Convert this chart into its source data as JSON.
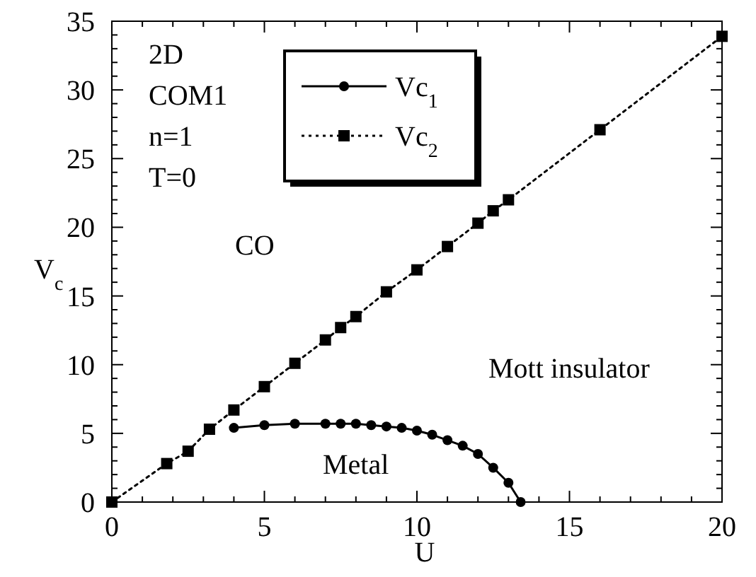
{
  "chart_data": {
    "type": "line",
    "xlabel": "U",
    "ylabel": "V$_{c}$",
    "xlim": [
      0,
      20
    ],
    "ylim": [
      0,
      35
    ],
    "xticks": [
      0,
      {
        "value": 1,
        "label": null
      },
      {
        "value": 2,
        "label": null
      },
      {
        "value": 3,
        "label": null
      },
      {
        "value": 4,
        "label": null
      },
      5,
      {
        "value": 6,
        "label": null
      },
      {
        "value": 7,
        "label": null
      },
      {
        "value": 8,
        "label": null
      },
      {
        "value": 9,
        "label": null
      },
      10,
      {
        "value": 11,
        "label": null
      },
      {
        "value": 12,
        "label": null
      },
      {
        "value": 13,
        "label": null
      },
      {
        "value": 14,
        "label": null
      },
      15,
      {
        "value": 16,
        "label": null
      },
      {
        "value": 17,
        "label": null
      },
      {
        "value": 18,
        "label": null
      },
      {
        "value": 19,
        "label": null
      },
      20
    ],
    "yticks": [
      0,
      {
        "value": 1,
        "label": null
      },
      {
        "value": 2,
        "label": null
      },
      {
        "value": 3,
        "label": null
      },
      {
        "value": 4,
        "label": null
      },
      5,
      {
        "value": 6,
        "label": null
      },
      {
        "value": 7,
        "label": null
      },
      {
        "value": 8,
        "label": null
      },
      {
        "value": 9,
        "label": null
      },
      10,
      {
        "value": 11,
        "label": null
      },
      {
        "value": 12,
        "label": null
      },
      {
        "value": 13,
        "label": null
      },
      {
        "value": 14,
        "label": null
      },
      15,
      {
        "value": 16,
        "label": null
      },
      {
        "value": 17,
        "label": null
      },
      {
        "value": 18,
        "label": null
      },
      {
        "value": 19,
        "label": null
      },
      20,
      {
        "value": 21,
        "label": null
      },
      {
        "value": 22,
        "label": null
      },
      {
        "value": 23,
        "label": null
      },
      {
        "value": 24,
        "label": null
      },
      25,
      {
        "value": 26,
        "label": null
      },
      {
        "value": 27,
        "label": null
      },
      {
        "value": 28,
        "label": null
      },
      {
        "value": 29,
        "label": null
      },
      30,
      {
        "value": 31,
        "label": null
      },
      {
        "value": 32,
        "label": null
      },
      {
        "value": 33,
        "label": null
      },
      {
        "value": 34,
        "label": null
      },
      35
    ],
    "grid": false,
    "legend": "top",
    "series": [
      {
        "name": "Vc$_{1}$",
        "color": "#000000",
        "marker": "circle",
        "line_style": "solid",
        "x": [
          4,
          5,
          6,
          7,
          7.5,
          8,
          8.5,
          9,
          9.5,
          10,
          10.5,
          11,
          11.5,
          12,
          12.5,
          13,
          13.4
        ],
        "values": [
          5.4,
          5.6,
          5.7,
          5.7,
          5.7,
          5.7,
          5.6,
          5.5,
          5.4,
          5.2,
          4.9,
          4.5,
          4.1,
          3.5,
          2.5,
          1.4,
          0
        ]
      },
      {
        "name": "Vc$_{2}$",
        "color": "#000000",
        "marker": "square",
        "line_style": "dotted",
        "x": [
          0,
          1.8,
          2.5,
          3.2,
          4,
          5,
          6,
          7,
          7.5,
          8,
          9,
          10,
          11,
          12,
          12.5,
          13,
          16,
          20
        ],
        "values": [
          0,
          2.8,
          3.7,
          5.3,
          6.7,
          8.4,
          10.1,
          11.8,
          12.7,
          13.5,
          15.3,
          16.9,
          18.6,
          20.3,
          21.2,
          22,
          27.1,
          33.9
        ]
      }
    ],
    "annotations": [
      "2D",
      "COM1",
      "n=1",
      "T=0",
      "CO",
      "Mott insulator",
      "Metal"
    ]
  }
}
